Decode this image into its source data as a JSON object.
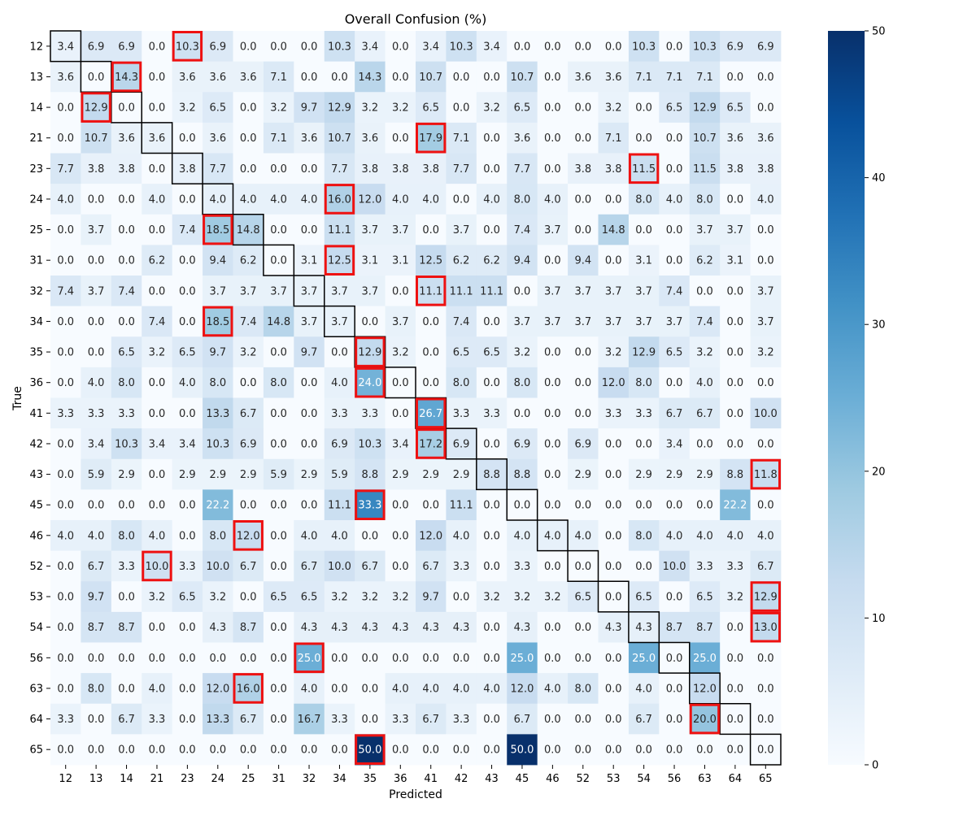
{
  "chart_data": {
    "type": "heatmap",
    "title": "Overall Confusion (%)",
    "xlabel": "Predicted",
    "ylabel": "True",
    "labels": [
      "12",
      "13",
      "14",
      "21",
      "23",
      "24",
      "25",
      "31",
      "32",
      "34",
      "35",
      "36",
      "41",
      "42",
      "43",
      "45",
      "46",
      "52",
      "53",
      "54",
      "56",
      "63",
      "64",
      "65"
    ],
    "values": [
      [
        3.4,
        6.9,
        6.9,
        0.0,
        10.3,
        6.9,
        0.0,
        0.0,
        0.0,
        10.3,
        3.4,
        0.0,
        3.4,
        10.3,
        3.4,
        0.0,
        0.0,
        0.0,
        0.0,
        10.3,
        0.0,
        10.3,
        6.9,
        6.9
      ],
      [
        3.6,
        0.0,
        14.3,
        0.0,
        3.6,
        3.6,
        3.6,
        7.1,
        0.0,
        0.0,
        14.3,
        0.0,
        10.7,
        0.0,
        0.0,
        10.7,
        0.0,
        3.6,
        3.6,
        7.1,
        7.1,
        7.1,
        0.0,
        0.0
      ],
      [
        0.0,
        12.9,
        0.0,
        0.0,
        3.2,
        6.5,
        0.0,
        3.2,
        9.7,
        12.9,
        3.2,
        3.2,
        6.5,
        0.0,
        3.2,
        6.5,
        0.0,
        0.0,
        3.2,
        0.0,
        6.5,
        12.9,
        6.5,
        0.0
      ],
      [
        0.0,
        10.7,
        3.6,
        3.6,
        0.0,
        3.6,
        0.0,
        7.1,
        3.6,
        10.7,
        3.6,
        0.0,
        17.9,
        7.1,
        0.0,
        3.6,
        0.0,
        0.0,
        7.1,
        0.0,
        0.0,
        10.7,
        3.6,
        3.6
      ],
      [
        7.7,
        3.8,
        3.8,
        0.0,
        3.8,
        7.7,
        0.0,
        0.0,
        0.0,
        7.7,
        3.8,
        3.8,
        3.8,
        7.7,
        0.0,
        7.7,
        0.0,
        3.8,
        3.8,
        11.5,
        0.0,
        11.5,
        3.8,
        3.8
      ],
      [
        4.0,
        0.0,
        0.0,
        4.0,
        0.0,
        4.0,
        4.0,
        4.0,
        4.0,
        16.0,
        12.0,
        4.0,
        4.0,
        0.0,
        4.0,
        8.0,
        4.0,
        0.0,
        0.0,
        8.0,
        4.0,
        8.0,
        0.0,
        4.0
      ],
      [
        0.0,
        3.7,
        0.0,
        0.0,
        7.4,
        18.5,
        14.8,
        0.0,
        0.0,
        11.1,
        3.7,
        3.7,
        0.0,
        3.7,
        0.0,
        7.4,
        3.7,
        0.0,
        14.8,
        0.0,
        0.0,
        3.7,
        3.7,
        0.0
      ],
      [
        0.0,
        0.0,
        0.0,
        6.2,
        0.0,
        9.4,
        6.2,
        0.0,
        3.1,
        12.5,
        3.1,
        3.1,
        12.5,
        6.2,
        6.2,
        9.4,
        0.0,
        9.4,
        0.0,
        3.1,
        0.0,
        6.2,
        3.1,
        0.0
      ],
      [
        7.4,
        3.7,
        7.4,
        0.0,
        0.0,
        3.7,
        3.7,
        3.7,
        3.7,
        3.7,
        3.7,
        0.0,
        11.1,
        11.1,
        11.1,
        0.0,
        3.7,
        3.7,
        3.7,
        3.7,
        7.4,
        0.0,
        0.0,
        3.7
      ],
      [
        0.0,
        0.0,
        0.0,
        7.4,
        0.0,
        18.5,
        7.4,
        14.8,
        3.7,
        3.7,
        0.0,
        3.7,
        0.0,
        7.4,
        0.0,
        3.7,
        3.7,
        3.7,
        3.7,
        3.7,
        3.7,
        7.4,
        0.0,
        3.7
      ],
      [
        0.0,
        0.0,
        6.5,
        3.2,
        6.5,
        9.7,
        3.2,
        0.0,
        9.7,
        0.0,
        12.9,
        3.2,
        0.0,
        6.5,
        6.5,
        3.2,
        0.0,
        0.0,
        3.2,
        12.9,
        6.5,
        3.2,
        0.0,
        3.2
      ],
      [
        0.0,
        4.0,
        8.0,
        0.0,
        4.0,
        8.0,
        0.0,
        8.0,
        0.0,
        4.0,
        24.0,
        0.0,
        0.0,
        8.0,
        0.0,
        8.0,
        0.0,
        0.0,
        12.0,
        8.0,
        0.0,
        4.0,
        0.0,
        0.0
      ],
      [
        3.3,
        3.3,
        3.3,
        0.0,
        0.0,
        13.3,
        6.7,
        0.0,
        0.0,
        3.3,
        3.3,
        0.0,
        26.7,
        3.3,
        3.3,
        0.0,
        0.0,
        0.0,
        3.3,
        3.3,
        6.7,
        6.7,
        0.0,
        10.0
      ],
      [
        0.0,
        3.4,
        10.3,
        3.4,
        3.4,
        10.3,
        6.9,
        0.0,
        0.0,
        6.9,
        10.3,
        3.4,
        17.2,
        6.9,
        0.0,
        6.9,
        0.0,
        6.9,
        0.0,
        0.0,
        3.4,
        0.0,
        0.0,
        0.0
      ],
      [
        0.0,
        5.9,
        2.9,
        0.0,
        2.9,
        2.9,
        2.9,
        5.9,
        2.9,
        5.9,
        8.8,
        2.9,
        2.9,
        2.9,
        8.8,
        8.8,
        0.0,
        2.9,
        0.0,
        2.9,
        2.9,
        2.9,
        8.8,
        11.8
      ],
      [
        0.0,
        0.0,
        0.0,
        0.0,
        0.0,
        22.2,
        0.0,
        0.0,
        0.0,
        11.1,
        33.3,
        0.0,
        0.0,
        11.1,
        0.0,
        0.0,
        0.0,
        0.0,
        0.0,
        0.0,
        0.0,
        0.0,
        22.2,
        0.0
      ],
      [
        4.0,
        4.0,
        8.0,
        4.0,
        0.0,
        8.0,
        12.0,
        0.0,
        4.0,
        4.0,
        0.0,
        0.0,
        12.0,
        4.0,
        0.0,
        4.0,
        4.0,
        4.0,
        0.0,
        8.0,
        4.0,
        4.0,
        4.0,
        4.0
      ],
      [
        0.0,
        6.7,
        3.3,
        10.0,
        3.3,
        10.0,
        6.7,
        0.0,
        6.7,
        10.0,
        6.7,
        0.0,
        6.7,
        3.3,
        0.0,
        3.3,
        0.0,
        0.0,
        0.0,
        0.0,
        10.0,
        3.3,
        3.3,
        6.7
      ],
      [
        0.0,
        9.7,
        0.0,
        3.2,
        6.5,
        3.2,
        0.0,
        6.5,
        6.5,
        3.2,
        3.2,
        3.2,
        9.7,
        0.0,
        3.2,
        3.2,
        3.2,
        6.5,
        0.0,
        6.5,
        0.0,
        6.5,
        3.2,
        12.9
      ],
      [
        0.0,
        8.7,
        8.7,
        0.0,
        0.0,
        4.3,
        8.7,
        0.0,
        4.3,
        4.3,
        4.3,
        4.3,
        4.3,
        4.3,
        0.0,
        4.3,
        0.0,
        0.0,
        4.3,
        4.3,
        8.7,
        8.7,
        0.0,
        13.0
      ],
      [
        0.0,
        0.0,
        0.0,
        0.0,
        0.0,
        0.0,
        0.0,
        0.0,
        25.0,
        0.0,
        0.0,
        0.0,
        0.0,
        0.0,
        0.0,
        25.0,
        0.0,
        0.0,
        0.0,
        25.0,
        0.0,
        25.0,
        0.0,
        0.0
      ],
      [
        0.0,
        8.0,
        0.0,
        4.0,
        0.0,
        12.0,
        16.0,
        0.0,
        4.0,
        0.0,
        0.0,
        4.0,
        4.0,
        4.0,
        4.0,
        12.0,
        4.0,
        8.0,
        0.0,
        4.0,
        0.0,
        12.0,
        0.0,
        0.0
      ],
      [
        3.3,
        0.0,
        6.7,
        3.3,
        0.0,
        13.3,
        6.7,
        0.0,
        16.7,
        3.3,
        0.0,
        3.3,
        6.7,
        3.3,
        0.0,
        6.7,
        0.0,
        0.0,
        0.0,
        6.7,
        0.0,
        20.0,
        0.0,
        0.0
      ],
      [
        0.0,
        0.0,
        0.0,
        0.0,
        0.0,
        0.0,
        0.0,
        0.0,
        0.0,
        0.0,
        50.0,
        0.0,
        0.0,
        0.0,
        0.0,
        50.0,
        0.0,
        0.0,
        0.0,
        0.0,
        0.0,
        0.0,
        0.0,
        0.0
      ]
    ],
    "highlighted_cells": [
      {
        "row": "12",
        "col": "23"
      },
      {
        "row": "13",
        "col": "14"
      },
      {
        "row": "14",
        "col": "13"
      },
      {
        "row": "21",
        "col": "41"
      },
      {
        "row": "23",
        "col": "54"
      },
      {
        "row": "24",
        "col": "34"
      },
      {
        "row": "25",
        "col": "24"
      },
      {
        "row": "31",
        "col": "34"
      },
      {
        "row": "32",
        "col": "41"
      },
      {
        "row": "34",
        "col": "24"
      },
      {
        "row": "35",
        "col": "35"
      },
      {
        "row": "36",
        "col": "35"
      },
      {
        "row": "41",
        "col": "41"
      },
      {
        "row": "42",
        "col": "41"
      },
      {
        "row": "43",
        "col": "65"
      },
      {
        "row": "45",
        "col": "35"
      },
      {
        "row": "46",
        "col": "25"
      },
      {
        "row": "52",
        "col": "21"
      },
      {
        "row": "53",
        "col": "65"
      },
      {
        "row": "54",
        "col": "65"
      },
      {
        "row": "56",
        "col": "32"
      },
      {
        "row": "63",
        "col": "25"
      },
      {
        "row": "64",
        "col": "63"
      },
      {
        "row": "65",
        "col": "35"
      }
    ],
    "colorbar": {
      "min": 0,
      "max": 50,
      "ticks": [
        "0",
        "10",
        "20",
        "30",
        "40",
        "50"
      ],
      "colormap": "Blues"
    },
    "colors": {
      "highlight": "#ee1111",
      "diagonal_outline": "#000000",
      "text_dark": "#262626",
      "text_light": "#ffffff"
    }
  }
}
